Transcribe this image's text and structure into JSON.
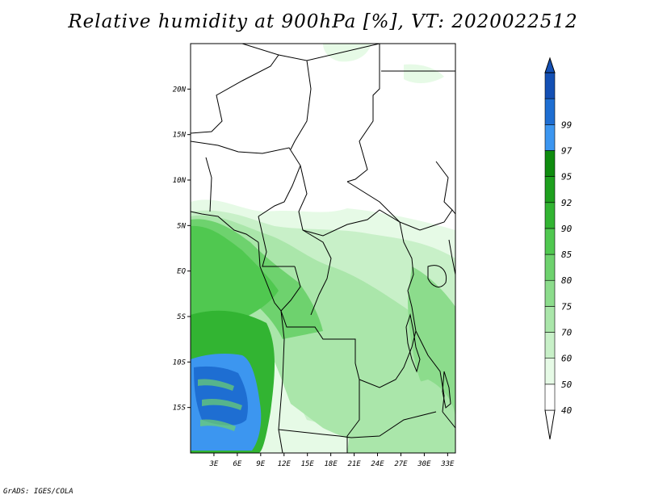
{
  "title": "Relative humidity at 900hPa [%], VT: 2020022512",
  "credit": "GrADS: IGES/COLA",
  "map": {
    "lon_range": [
      0,
      34
    ],
    "lat_range": [
      -20,
      25
    ],
    "lat_ticks": [
      {
        "value": 20,
        "label": "20N"
      },
      {
        "value": 15,
        "label": "15N"
      },
      {
        "value": 10,
        "label": "10N"
      },
      {
        "value": 5,
        "label": "5N"
      },
      {
        "value": 0,
        "label": "EQ"
      },
      {
        "value": -5,
        "label": "5S"
      },
      {
        "value": -10,
        "label": "10S"
      },
      {
        "value": -15,
        "label": "15S"
      }
    ],
    "lon_ticks": [
      {
        "value": 3,
        "label": "3E"
      },
      {
        "value": 6,
        "label": "6E"
      },
      {
        "value": 9,
        "label": "9E"
      },
      {
        "value": 12,
        "label": "12E"
      },
      {
        "value": 15,
        "label": "15E"
      },
      {
        "value": 18,
        "label": "18E"
      },
      {
        "value": 21,
        "label": "21E"
      },
      {
        "value": 24,
        "label": "24E"
      },
      {
        "value": 27,
        "label": "27E"
      },
      {
        "value": 30,
        "label": "30E"
      },
      {
        "value": 33,
        "label": "33E"
      }
    ]
  },
  "colorbar": {
    "bins": [
      {
        "color": "#ffffff",
        "label": "40"
      },
      {
        "color": "#e6fae6",
        "label": "50"
      },
      {
        "color": "#c8f0c8",
        "label": "60"
      },
      {
        "color": "#aae6aa",
        "label": "70"
      },
      {
        "color": "#8cdc8c",
        "label": "75"
      },
      {
        "color": "#6ed26e",
        "label": "80"
      },
      {
        "color": "#50c850",
        "label": "85"
      },
      {
        "color": "#32b432",
        "label": "90"
      },
      {
        "color": "#1ea01e",
        "label": "92"
      },
      {
        "color": "#0f8c0f",
        "label": "95"
      },
      {
        "color": "#3c96f0",
        "label": "97"
      },
      {
        "color": "#1e6ed2",
        "label": "99"
      },
      {
        "color": "#1450b4",
        "label": ""
      }
    ]
  },
  "colors": {
    "land_dry": "#ffffff",
    "border": "#000000",
    "very_moist": "#2f78e0"
  }
}
